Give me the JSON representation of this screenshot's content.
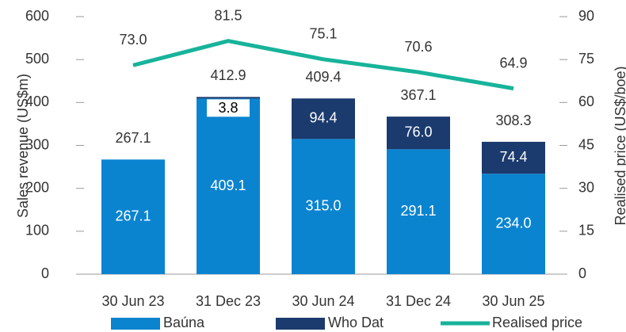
{
  "chart_data": {
    "type": "bar-line",
    "categories": [
      "30 Jun 23",
      "31 Dec 23",
      "30 Jun 24",
      "31 Dec 24",
      "30 Jun 25"
    ],
    "series": [
      {
        "name": "Baúna",
        "color": "#0b84d0",
        "values": [
          267.1,
          409.1,
          315.0,
          291.1,
          234.0
        ],
        "value_labels": [
          "267.1",
          "409.1",
          "315.0",
          "291.1",
          "234.0"
        ]
      },
      {
        "name": "Who Dat",
        "color": "#1b3a6e",
        "values": [
          null,
          3.8,
          94.4,
          76.0,
          74.4
        ],
        "value_labels": [
          null,
          "3.8",
          "94.4",
          "76.0",
          "74.4"
        ]
      },
      {
        "name": "Realised price",
        "color": "#17b39a",
        "axis": "y2",
        "values": [
          73.0,
          81.5,
          75.1,
          70.6,
          64.9
        ],
        "value_labels": [
          "73.0",
          "81.5",
          "75.1",
          "70.6",
          "64.9"
        ]
      }
    ],
    "totals": [
      267.1,
      412.9,
      409.4,
      367.1,
      308.3
    ],
    "ylabel": "Sales revenue (US$m)",
    "y2label": "Realised price (US$/boe)",
    "ylim": [
      0,
      600
    ],
    "yticks": [
      0,
      100,
      200,
      300,
      400,
      500,
      600
    ],
    "y2lim": [
      0,
      90
    ],
    "y2ticks": [
      0,
      15,
      30,
      45,
      60,
      75,
      90
    ]
  }
}
